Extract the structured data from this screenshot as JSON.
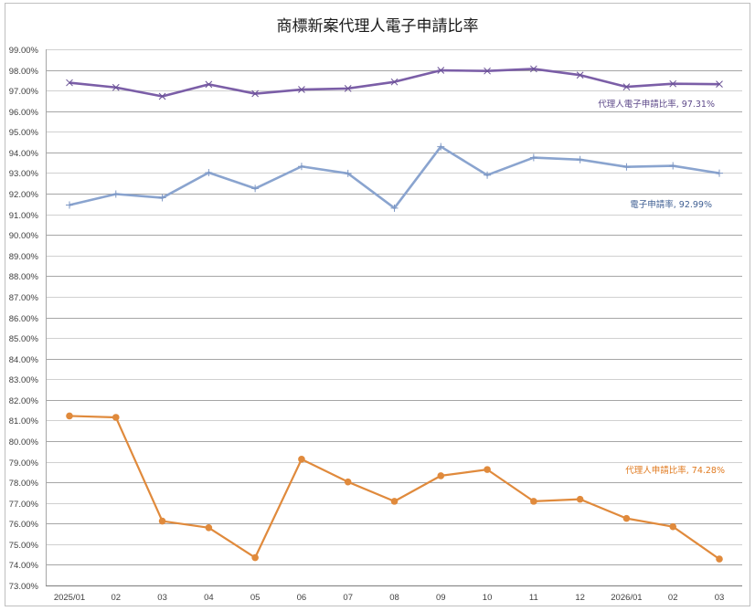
{
  "chart_data": {
    "type": "line",
    "title": "商標新案代理人電子申請比率",
    "xlabel": "",
    "ylabel": "",
    "ylim": [
      73,
      99
    ],
    "y_tick_step": 1,
    "y_tick_format": "0.00%",
    "grid": true,
    "legend": "none (inline data labels on last points)",
    "categories": [
      "2025/01",
      "02",
      "03",
      "04",
      "05",
      "06",
      "07",
      "08",
      "09",
      "10",
      "11",
      "12",
      "2026/01",
      "02",
      "03"
    ],
    "series": [
      {
        "name": "代理人電子申請比率",
        "color": "#7b5ea7",
        "marker": "x",
        "values": [
          97.38,
          97.15,
          96.72,
          97.3,
          96.85,
          97.05,
          97.1,
          97.42,
          97.98,
          97.95,
          98.05,
          97.75,
          97.18,
          97.33,
          97.31
        ],
        "last_label": "代理人電子申請比率, 97.31%"
      },
      {
        "name": "電子申請率",
        "color": "#8aa4cf",
        "marker": "+",
        "values": [
          91.45,
          91.98,
          91.8,
          93.02,
          92.25,
          93.32,
          92.98,
          91.3,
          94.28,
          92.9,
          93.75,
          93.65,
          93.3,
          93.35,
          92.99
        ],
        "last_label": "電子申請率, 92.99%"
      },
      {
        "name": "代理人申請比率",
        "color": "#e08a3c",
        "marker": "circle",
        "values": [
          81.22,
          81.15,
          76.12,
          75.8,
          74.35,
          79.12,
          78.02,
          77.08,
          78.32,
          78.62,
          77.08,
          77.18,
          76.25,
          75.85,
          74.28
        ],
        "last_label": "代理人申請比率, 74.28%"
      }
    ]
  },
  "label_colors": {
    "agent_electronic": "#5e4a8a",
    "electronic": "#3f5f93",
    "agent": "#e07a1f"
  }
}
